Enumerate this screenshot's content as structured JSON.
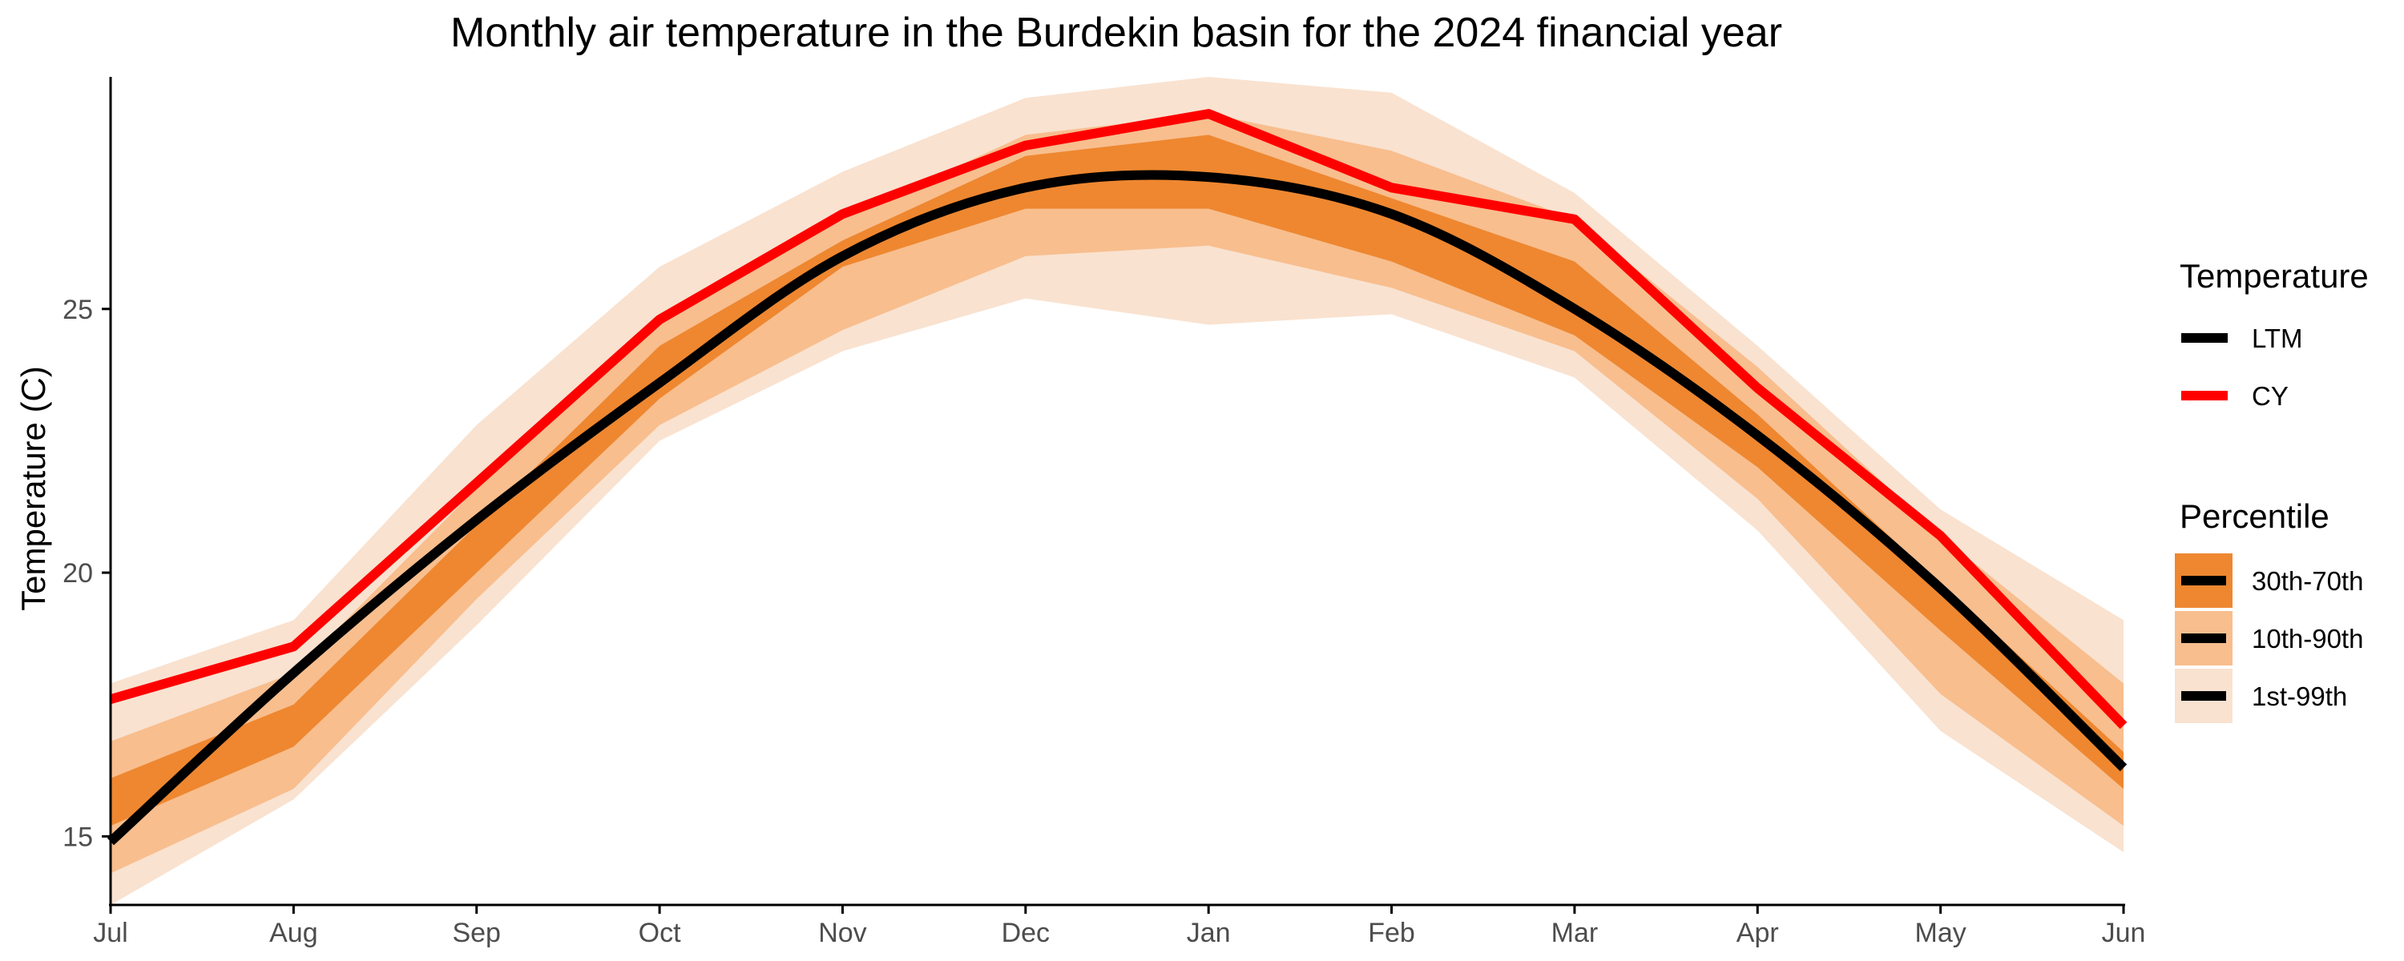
{
  "chart_data": {
    "type": "line",
    "title": "Monthly air temperature in the Burdekin basin for the 2024 financial year",
    "xlabel": "",
    "ylabel": "Temperature (C)",
    "categories": [
      "Jul",
      "Aug",
      "Sep",
      "Oct",
      "Nov",
      "Dec",
      "Jan",
      "Feb",
      "Mar",
      "Apr",
      "May",
      "Jun"
    ],
    "ylim": [
      13.7,
      29.4
    ],
    "yticks": [
      15,
      20,
      25
    ],
    "grid": false,
    "series": [
      {
        "name": "LTM",
        "color": "#000000",
        "values": [
          14.9,
          18.1,
          21.0,
          23.6,
          26.0,
          27.3,
          27.5,
          26.8,
          25.0,
          22.6,
          19.7,
          16.3
        ]
      },
      {
        "name": "CY",
        "color": "#ff0000",
        "values": [
          17.6,
          18.6,
          21.7,
          24.8,
          26.8,
          28.1,
          28.7,
          27.3,
          26.7,
          23.5,
          20.7,
          17.1
        ]
      }
    ],
    "bands": [
      {
        "name": "1st-99th",
        "color": "#f9e2d0",
        "lower": [
          13.7,
          15.7,
          19.0,
          22.5,
          24.2,
          25.2,
          24.7,
          24.9,
          23.7,
          20.8,
          17.0,
          14.7
        ],
        "upper": [
          17.9,
          19.1,
          22.8,
          25.8,
          27.6,
          29.0,
          29.4,
          29.1,
          27.2,
          24.3,
          21.2,
          19.1
        ]
      },
      {
        "name": "10th-90th",
        "color": "#f8be8e",
        "lower": [
          14.3,
          15.9,
          19.5,
          22.8,
          24.6,
          26.0,
          26.2,
          25.4,
          24.2,
          21.4,
          17.7,
          15.2
        ],
        "upper": [
          16.8,
          18.1,
          21.6,
          24.8,
          26.7,
          28.3,
          28.7,
          28.0,
          26.7,
          23.9,
          20.7,
          17.9
        ]
      },
      {
        "name": "30th-70th",
        "color": "#ee8730",
        "lower": [
          15.2,
          16.7,
          20.0,
          23.3,
          25.8,
          26.9,
          26.9,
          25.9,
          24.5,
          22.0,
          18.9,
          15.9
        ],
        "upper": [
          16.1,
          17.5,
          20.9,
          24.3,
          26.3,
          27.9,
          28.3,
          27.1,
          25.9,
          23.0,
          19.8,
          16.6
        ]
      }
    ],
    "legend": {
      "position": "right",
      "temperature_title": "Temperature",
      "temperature_items": [
        "LTM",
        "CY"
      ],
      "percentile_title": "Percentile",
      "percentile_items": [
        "30th-70th",
        "10th-90th",
        "1st-99th"
      ]
    }
  }
}
